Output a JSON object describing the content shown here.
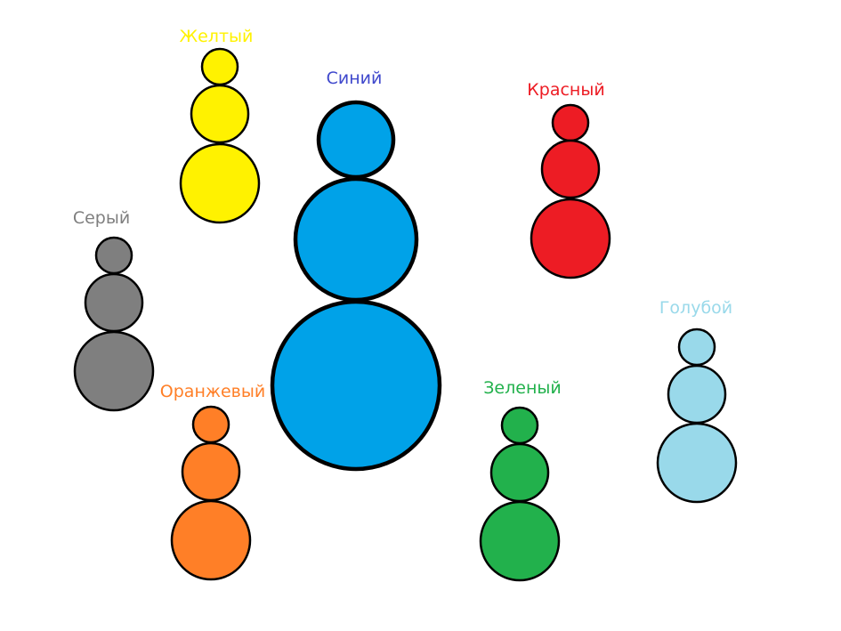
{
  "snowmen": [
    {
      "label": "Желтый",
      "fill": "#fff200",
      "label_color": "#fff200"
    },
    {
      "label": "Синий",
      "fill": "#00a2e8",
      "label_color": "#3f48cc"
    },
    {
      "label": "Красный",
      "fill": "#ed1c24",
      "label_color": "#ed1c24"
    },
    {
      "label": "Серый",
      "fill": "#7f7f7f",
      "label_color": "#7f7f7f"
    },
    {
      "label": "Оранжевый",
      "fill": "#ff7f27",
      "label_color": "#ff7f27"
    },
    {
      "label": "Зеленый",
      "fill": "#22b14c",
      "label_color": "#22b14c"
    },
    {
      "label": "Голубой",
      "fill": "#99d9ea",
      "label_color": "#99d9ea"
    }
  ]
}
